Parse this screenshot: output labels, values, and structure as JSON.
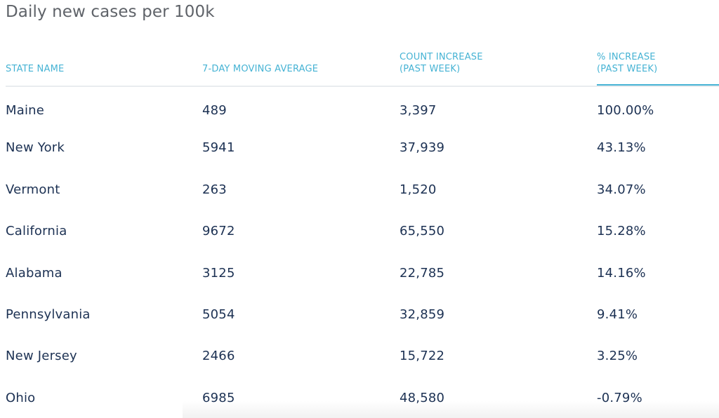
{
  "title": "Daily new cases per 100k",
  "colors": {
    "header": "#46b3d4",
    "body_text": "#1c3153",
    "title": "#5f6369",
    "rule": "#e9ecef"
  },
  "chart_data": {
    "type": "table",
    "title": "Daily new cases per 100k",
    "columns": [
      {
        "line1": "STATE NAME",
        "line2": ""
      },
      {
        "line1": "7-DAY MOVING AVERAGE",
        "line2": ""
      },
      {
        "line1": "COUNT INCREASE",
        "line2": "(PAST WEEK)"
      },
      {
        "line1": "% INCREASE",
        "line2": "(PAST WEEK)"
      }
    ],
    "sorted_column": "% INCREASE (PAST WEEK)",
    "rows": [
      [
        "Maine",
        "489",
        "3,397",
        "100.00%"
      ],
      [
        "New York",
        "5941",
        "37,939",
        "43.13%"
      ],
      [
        "Vermont",
        "263",
        "1,520",
        "34.07%"
      ],
      [
        "California",
        "9672",
        "65,550",
        "15.28%"
      ],
      [
        "Alabama",
        "3125",
        "22,785",
        "14.16%"
      ],
      [
        "Pennsylvania",
        "5054",
        "32,859",
        "9.41%"
      ],
      [
        "New Jersey",
        "2466",
        "15,722",
        "3.25%"
      ],
      [
        "Ohio",
        "6985",
        "48,580",
        "-0.79%"
      ]
    ]
  }
}
